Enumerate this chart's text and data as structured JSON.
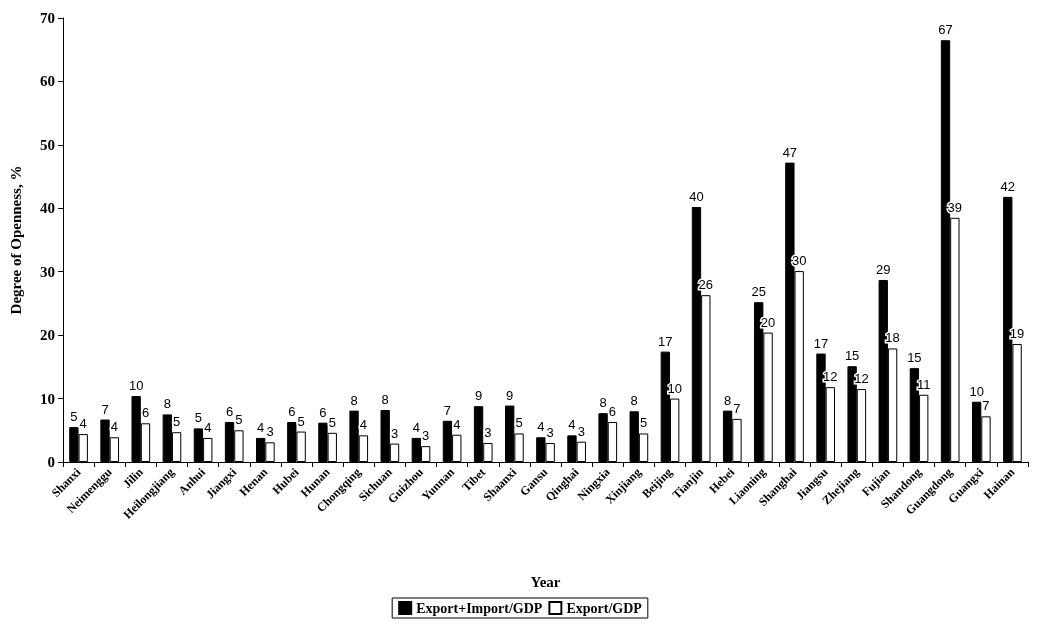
{
  "chart_data": {
    "type": "bar",
    "xlabel": "Year",
    "ylabel": "Degree of Openness, %",
    "categories": [
      "Shanxi",
      "Neimenggu",
      "Jilin",
      "Heilongjiang",
      "Anhui",
      "Jiangxi",
      "Henan",
      "Hubei",
      "Hunan",
      "Chongqing",
      "Sichuan",
      "Guizhou",
      "Yunnan",
      "Tibet",
      "Shaanxi",
      "Gansu",
      "Qinghai",
      "Ningxia",
      "Xinjiang",
      "Beijing",
      "Tianjin",
      "Hebei",
      "Liaoning",
      "Shanghai",
      "Jiangsu",
      "Zhejiang",
      "Fujian",
      "Shandong",
      "Guangdong",
      "Guangxi",
      "Hainan"
    ],
    "series": [
      {
        "name": "Export+Import/GDP",
        "color": "#000000",
        "values": [
          5.5,
          6.7,
          10.4,
          7.5,
          5.3,
          6.3,
          3.8,
          6.3,
          6.2,
          8.1,
          8.2,
          3.8,
          6.5,
          8.8,
          8.9,
          3.9,
          4.2,
          7.7,
          8.0,
          17.4,
          40.2,
          8.1,
          25.2,
          47.2,
          17.1,
          15.1,
          28.7,
          14.8,
          66.5,
          9.5,
          41.8
        ],
        "value_labels": [
          "5",
          "7",
          "10",
          "8",
          "5",
          "6",
          "4",
          "6",
          "6",
          "8",
          "8",
          "4",
          "7",
          "9",
          "9",
          "4",
          "4",
          "8",
          "8",
          "17",
          "40",
          "8",
          "25",
          "47",
          "17",
          "15",
          "29",
          "15",
          "67",
          "10",
          "42"
        ]
      },
      {
        "name": "Export/GDP",
        "color": "#ffffff",
        "values": [
          4.4,
          3.9,
          6.1,
          4.7,
          3.8,
          5.0,
          3.1,
          4.8,
          4.6,
          4.2,
          2.9,
          2.5,
          4.3,
          3.0,
          4.5,
          3.0,
          3.2,
          6.3,
          4.5,
          10.0,
          26.3,
          6.8,
          20.4,
          30.1,
          11.8,
          11.5,
          17.9,
          10.6,
          38.5,
          7.2,
          18.6
        ],
        "value_labels": [
          "4",
          "4",
          "6",
          "5",
          "4",
          "5",
          "3",
          "5",
          "5",
          "4",
          "3",
          "3",
          "4",
          "3",
          "5",
          "3",
          "3",
          "6",
          "5",
          "10",
          "26",
          "7",
          "20",
          "30",
          "12",
          "12",
          "18",
          "11",
          "39",
          "7",
          "19"
        ]
      }
    ],
    "ylim": [
      0,
      70
    ],
    "yticks": [
      0,
      10,
      20,
      30,
      40,
      50,
      60,
      70
    ],
    "grid": false,
    "legend": "bottom"
  }
}
